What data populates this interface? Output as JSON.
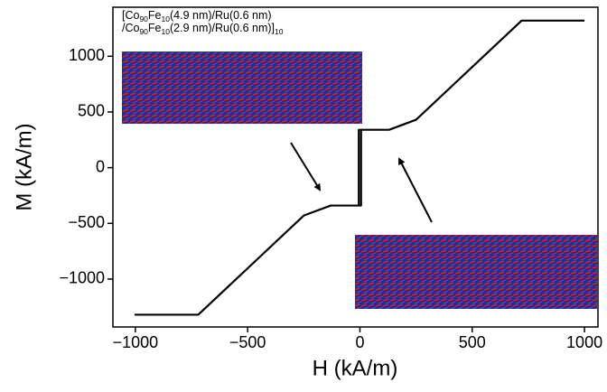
{
  "chart_data": {
    "type": "line",
    "xlabel": "H (kA/m)",
    "ylabel": "M (kA/m)",
    "annotation": [
      [
        {
          "text": "[Co"
        },
        {
          "text": "90",
          "sub": true
        },
        {
          "text": "Fe"
        },
        {
          "text": "10",
          "sub": true
        },
        {
          "text": "(4.9 nm)/Ru(0.6 nm)"
        }
      ],
      [
        {
          "text": "/Co"
        },
        {
          "text": "90",
          "sub": true
        },
        {
          "text": "Fe"
        },
        {
          "text": "10",
          "sub": true
        },
        {
          "text": "(2.9 nm)/Ru(0.6 nm)]"
        },
        {
          "text": "10",
          "sub": true
        }
      ]
    ],
    "xlim": [
      -1100,
      1060
    ],
    "ylim": [
      -1430,
      1440
    ],
    "xticks": [
      {
        "value": -1000,
        "label": "−1000"
      },
      {
        "value": -500,
        "label": "−500"
      },
      0,
      500,
      1000
    ],
    "yticks": [
      1000,
      500,
      0,
      {
        "value": -500,
        "label": "−500"
      },
      {
        "value": -1000,
        "label": "−1000"
      }
    ],
    "series": [
      {
        "color": "#000000",
        "x": [
          1000,
          720,
          250,
          130,
          -5,
          -5,
          -130,
          -250,
          -720,
          -1000,
          -720,
          -250,
          -130,
          5,
          5,
          130,
          250,
          720,
          1000
        ],
        "values": [
          1320,
          1320,
          430,
          340,
          340,
          -340,
          -340,
          -430,
          -1320,
          -1320,
          -1320,
          -430,
          -340,
          -340,
          340,
          340,
          430,
          1320,
          1320
        ]
      }
    ]
  }
}
